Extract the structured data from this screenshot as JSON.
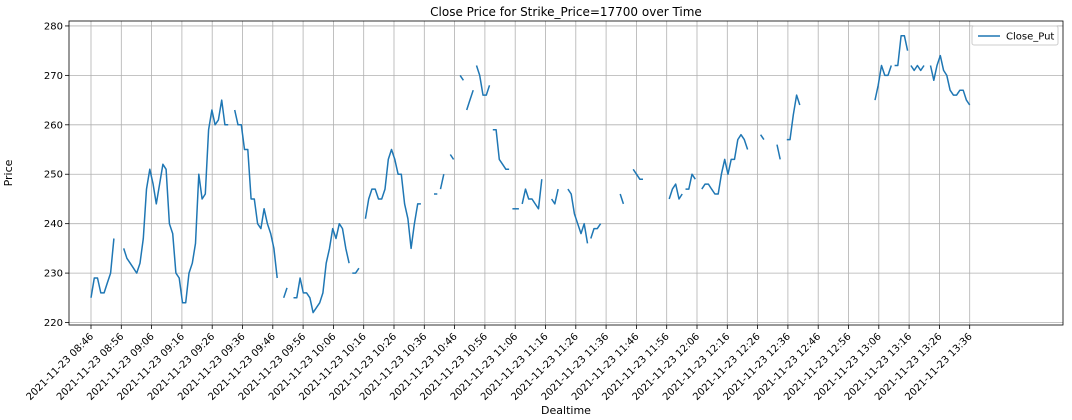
{
  "chart_data": {
    "type": "line",
    "title": "Close Price for Strike_Price=17700 over Time",
    "xlabel": "Dealtime",
    "ylabel": "Price",
    "ylim": [
      219.5,
      281
    ],
    "yticks": [
      220,
      230,
      240,
      250,
      260,
      270,
      280
    ],
    "xlim_minutes": [
      -5,
      172
    ],
    "xticks": [
      {
        "label": "2021-11-23 08:46",
        "m": 0
      },
      {
        "label": "2021-11-23 08:56",
        "m": 10
      },
      {
        "label": "2021-11-23 09:06",
        "m": 20
      },
      {
        "label": "2021-11-23 09:16",
        "m": 30
      },
      {
        "label": "2021-11-23 09:26",
        "m": 40
      },
      {
        "label": "2021-11-23 09:36",
        "m": 50
      },
      {
        "label": "2021-11-23 09:46",
        "m": 60
      },
      {
        "label": "2021-11-23 09:56",
        "m": 70
      },
      {
        "label": "2021-11-23 10:06",
        "m": 80
      },
      {
        "label": "2021-11-23 10:16",
        "m": 90
      },
      {
        "label": "2021-11-23 10:26",
        "m": 100
      },
      {
        "label": "2021-11-23 10:36",
        "m": 110
      },
      {
        "label": "2021-11-23 10:46",
        "m": 120
      },
      {
        "label": "2021-11-23 10:56",
        "m": 130
      },
      {
        "label": "2021-11-23 11:06",
        "m": 140
      },
      {
        "label": "2021-11-23 11:16",
        "m": 150
      },
      {
        "label": "2021-11-23 11:26",
        "m": 160
      },
      {
        "label": "2021-11-23 11:36",
        "m": 170
      },
      {
        "label": "2021-11-23 11:46",
        "m": 180
      },
      {
        "label": "2021-11-23 11:56",
        "m": 190
      },
      {
        "label": "2021-11-23 12:06",
        "m": 200
      },
      {
        "label": "2021-11-23 12:16",
        "m": 210
      },
      {
        "label": "2021-11-23 12:26",
        "m": 220
      },
      {
        "label": "2021-11-23 12:36",
        "m": 230
      },
      {
        "label": "2021-11-23 12:46",
        "m": 240
      },
      {
        "label": "2021-11-23 12:56",
        "m": 250
      },
      {
        "label": "2021-11-23 13:06",
        "m": 260
      },
      {
        "label": "2021-11-23 13:16",
        "m": 270
      },
      {
        "label": "2021-11-23 13:26",
        "m": 280
      },
      {
        "label": "2021-11-23 13:36",
        "m": 290
      }
    ],
    "grid": true,
    "legend_position": "top-right",
    "series": [
      {
        "name": "Close_Put",
        "color": "#1f77b4",
        "segments": [
          [
            [
              0,
              225
            ],
            [
              1,
              229
            ],
            [
              2,
              229
            ],
            [
              3,
              226
            ],
            [
              4,
              226
            ],
            [
              5,
              228
            ],
            [
              6,
              230
            ],
            [
              7,
              237
            ]
          ],
          [
            [
              10,
              235
            ],
            [
              11,
              233
            ],
            [
              12,
              232
            ],
            [
              13,
              231
            ],
            [
              14,
              230
            ],
            [
              15,
              232
            ],
            [
              16,
              237
            ],
            [
              17,
              247
            ],
            [
              18,
              251
            ],
            [
              19,
              248
            ],
            [
              20,
              244
            ],
            [
              21,
              248
            ],
            [
              22,
              252
            ],
            [
              23,
              251
            ],
            [
              24,
              240
            ],
            [
              25,
              238
            ],
            [
              26,
              230
            ],
            [
              27,
              229
            ],
            [
              28,
              224
            ],
            [
              29,
              224
            ],
            [
              30,
              230
            ],
            [
              31,
              232
            ],
            [
              32,
              236
            ],
            [
              33,
              250
            ],
            [
              34,
              245
            ],
            [
              35,
              246
            ],
            [
              36,
              259
            ],
            [
              37,
              263
            ],
            [
              38,
              260
            ],
            [
              39,
              261
            ],
            [
              40,
              265
            ],
            [
              41,
              260
            ],
            [
              42,
              260
            ]
          ],
          [
            [
              44,
              263
            ],
            [
              45,
              260
            ],
            [
              46,
              260
            ],
            [
              47,
              255
            ],
            [
              48,
              255
            ],
            [
              49,
              245
            ],
            [
              50,
              245
            ],
            [
              51,
              240
            ],
            [
              52,
              239
            ],
            [
              53,
              243
            ],
            [
              54,
              240
            ],
            [
              55,
              238
            ],
            [
              56,
              235
            ],
            [
              57,
              229
            ]
          ],
          [
            [
              59,
              225
            ],
            [
              60,
              227
            ]
          ],
          [
            [
              62,
              225
            ],
            [
              63,
              225
            ],
            [
              64,
              229
            ],
            [
              65,
              226
            ],
            [
              66,
              226
            ],
            [
              67,
              225
            ],
            [
              68,
              222
            ],
            [
              69,
              223
            ],
            [
              70,
              224
            ],
            [
              71,
              226
            ],
            [
              72,
              232
            ],
            [
              73,
              235
            ],
            [
              74,
              239
            ],
            [
              75,
              237
            ],
            [
              76,
              240
            ],
            [
              77,
              239
            ],
            [
              78,
              235
            ],
            [
              79,
              232
            ]
          ],
          [
            [
              80,
              230
            ],
            [
              81,
              230
            ],
            [
              82,
              231
            ]
          ],
          [
            [
              84,
              241
            ],
            [
              85,
              245
            ],
            [
              86,
              247
            ],
            [
              87,
              247
            ],
            [
              88,
              245
            ],
            [
              89,
              245
            ],
            [
              90,
              247
            ],
            [
              91,
              253
            ],
            [
              92,
              255
            ],
            [
              93,
              253
            ],
            [
              94,
              250
            ],
            [
              95,
              250
            ],
            [
              96,
              244
            ],
            [
              97,
              241
            ],
            [
              98,
              235
            ],
            [
              99,
              240
            ],
            [
              100,
              244
            ],
            [
              101,
              244
            ]
          ],
          [
            [
              105,
              246
            ],
            [
              106,
              246
            ]
          ],
          [
            [
              107,
              247
            ],
            [
              108,
              250
            ]
          ],
          [
            [
              110,
              254
            ],
            [
              111,
              253
            ]
          ],
          [
            [
              113,
              270
            ],
            [
              114,
              269
            ]
          ],
          [
            [
              115,
              263
            ],
            [
              116,
              265
            ],
            [
              117,
              267
            ]
          ],
          [
            [
              118,
              272
            ],
            [
              119,
              270
            ],
            [
              120,
              266
            ],
            [
              121,
              266
            ],
            [
              122,
              268
            ]
          ],
          [
            [
              123,
              259
            ],
            [
              124,
              259
            ],
            [
              125,
              253
            ],
            [
              126,
              252
            ],
            [
              127,
              251
            ],
            [
              128,
              251
            ]
          ],
          [
            [
              129,
              243
            ],
            [
              130,
              243
            ],
            [
              131,
              243
            ]
          ],
          [
            [
              132,
              244
            ],
            [
              133,
              247
            ],
            [
              134,
              245
            ],
            [
              135,
              245
            ],
            [
              136,
              244
            ],
            [
              137,
              243
            ],
            [
              138,
              249
            ]
          ],
          [
            [
              141,
              245
            ],
            [
              142,
              244
            ],
            [
              143,
              247
            ]
          ],
          [
            [
              146,
              247
            ],
            [
              147,
              246
            ],
            [
              148,
              242
            ],
            [
              149,
              240
            ],
            [
              150,
              238
            ],
            [
              151,
              240
            ],
            [
              152,
              236
            ]
          ],
          [
            [
              153,
              237
            ],
            [
              154,
              239
            ],
            [
              155,
              239
            ],
            [
              156,
              240
            ]
          ],
          [
            [
              162,
              246
            ],
            [
              163,
              244
            ]
          ],
          [
            [
              166,
              251
            ],
            [
              167,
              250
            ],
            [
              168,
              249
            ],
            [
              169,
              249
            ]
          ],
          [
            [
              177,
              245
            ],
            [
              178,
              247
            ],
            [
              179,
              248
            ],
            [
              180,
              245
            ],
            [
              181,
              246
            ]
          ],
          [
            [
              182,
              247
            ],
            [
              183,
              247
            ],
            [
              184,
              250
            ],
            [
              185,
              249
            ]
          ],
          [
            [
              187,
              247
            ],
            [
              188,
              248
            ],
            [
              189,
              248
            ],
            [
              190,
              247
            ],
            [
              191,
              246
            ],
            [
              192,
              246
            ],
            [
              193,
              250
            ],
            [
              194,
              253
            ],
            [
              195,
              250
            ],
            [
              196,
              253
            ],
            [
              197,
              253
            ],
            [
              198,
              257
            ],
            [
              199,
              258
            ],
            [
              200,
              257
            ],
            [
              201,
              255
            ]
          ],
          [
            [
              205,
              258
            ],
            [
              206,
              257
            ]
          ],
          [
            [
              210,
              256
            ],
            [
              211,
              253
            ]
          ],
          [
            [
              213,
              257
            ],
            [
              214,
              257
            ],
            [
              215,
              262
            ],
            [
              216,
              266
            ],
            [
              217,
              264
            ]
          ],
          [
            [
              240,
              265
            ],
            [
              241,
              268
            ],
            [
              242,
              272
            ],
            [
              243,
              270
            ],
            [
              244,
              270
            ],
            [
              245,
              272
            ]
          ],
          [
            [
              246,
              272
            ],
            [
              247,
              272
            ],
            [
              248,
              278
            ],
            [
              249,
              278
            ],
            [
              250,
              275
            ]
          ],
          [
            [
              251,
              272
            ],
            [
              252,
              271
            ],
            [
              253,
              272
            ],
            [
              254,
              271
            ],
            [
              255,
              272
            ]
          ],
          [
            [
              257,
              272
            ],
            [
              258,
              269
            ],
            [
              259,
              272
            ],
            [
              260,
              274
            ],
            [
              261,
              271
            ],
            [
              262,
              270
            ],
            [
              263,
              267
            ],
            [
              264,
              266
            ],
            [
              265,
              266
            ],
            [
              266,
              267
            ],
            [
              267,
              267
            ],
            [
              268,
              265
            ],
            [
              269,
              264
            ]
          ]
        ]
      }
    ]
  }
}
